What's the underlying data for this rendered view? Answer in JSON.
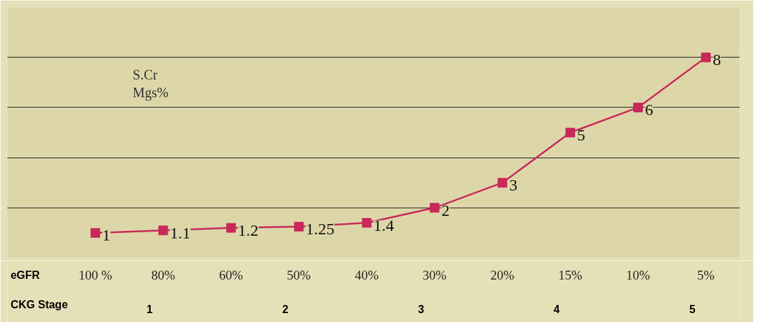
{
  "chart_data": {
    "type": "line",
    "ylabel": "S.Cr\nMgs%",
    "xlabel": "eGFR",
    "categories": [
      "100 %",
      "80%",
      "60%",
      "50%",
      "40%",
      "30%",
      "20%",
      "15%",
      "10%",
      "5%"
    ],
    "series": [
      {
        "color": "#c8285a",
        "values": [
          1,
          1.1,
          1.2,
          1.25,
          1.4,
          2,
          3,
          5,
          6,
          8
        ]
      }
    ],
    "ylim": [
      0,
      10
    ],
    "yticks": [
      {
        "value": 0,
        "label": null
      },
      {
        "value": 2,
        "label": null
      },
      {
        "value": 4,
        "label": null
      },
      {
        "value": 6,
        "label": null
      },
      {
        "value": 8,
        "label": null
      },
      {
        "value": 10,
        "label": null
      }
    ],
    "grid": "y",
    "marker": "square",
    "line_style": "solid",
    "data_labels": true,
    "annotations": [
      "CKG Stage",
      "1",
      "2",
      "3",
      "4",
      "5"
    ]
  }
}
